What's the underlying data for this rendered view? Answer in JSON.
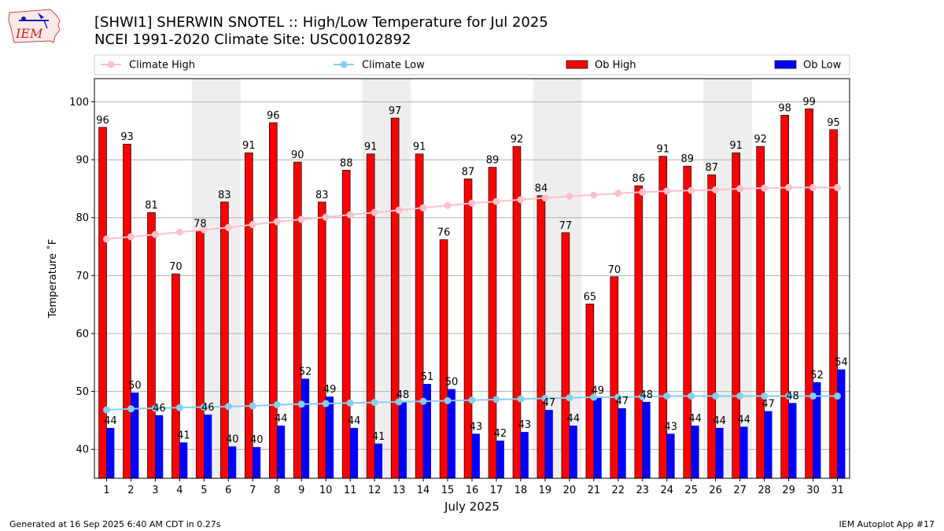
{
  "header": {
    "logo_text": "IEM",
    "title_line1": "[SHWI1] SHERWIN SNOTEL :: High/Low Temperature for Jul 2025",
    "title_line2": "NCEI 1991-2020 Climate Site: USC00102892"
  },
  "footer": {
    "generated": "Generated at 16 Sep 2025 6:40 AM CDT in 0.27s",
    "app": "IEM Autoplot App #17"
  },
  "colors": {
    "ob_high": "#ff0000",
    "ob_low": "#0000ff",
    "climate_high": "#ffc0cb",
    "climate_low": "#87ceeb",
    "weekend_shade": "#eeeeee",
    "grid": "#b0b0b0"
  },
  "chart_data": {
    "type": "bar",
    "xlabel": "July 2025",
    "ylabel": "Temperature ˚F",
    "ylim": [
      35,
      104
    ],
    "yticks": [
      40,
      50,
      60,
      70,
      80,
      90,
      100
    ],
    "grid": "horizontal",
    "legend_position": "top",
    "categories": [
      "1",
      "2",
      "3",
      "4",
      "5",
      "6",
      "7",
      "8",
      "9",
      "10",
      "11",
      "12",
      "13",
      "14",
      "15",
      "16",
      "17",
      "18",
      "19",
      "20",
      "21",
      "22",
      "23",
      "24",
      "25",
      "26",
      "27",
      "28",
      "29",
      "30",
      "31"
    ],
    "shaded_days": [
      [
        5,
        6
      ],
      [
        12,
        13
      ],
      [
        19,
        20
      ],
      [
        26,
        27
      ]
    ],
    "series": [
      {
        "name": "Ob High",
        "kind": "bar",
        "values": [
          95.6,
          92.7,
          80.9,
          70.3,
          77.7,
          82.7,
          91.2,
          96.4,
          89.6,
          82.7,
          88.2,
          91.0,
          97.2,
          91.0,
          76.2,
          86.7,
          88.7,
          92.3,
          83.8,
          77.4,
          65.1,
          69.8,
          85.5,
          90.6,
          88.9,
          87.4,
          91.2,
          92.3,
          97.7,
          98.8,
          95.2
        ],
        "labels": [
          96,
          93,
          81,
          70,
          78,
          83,
          91,
          96,
          90,
          83,
          88,
          91,
          97,
          91,
          76,
          87,
          89,
          92,
          84,
          77,
          65,
          70,
          86,
          91,
          89,
          87,
          91,
          92,
          98,
          99,
          95
        ]
      },
      {
        "name": "Ob Low",
        "kind": "bar",
        "values": [
          43.7,
          49.8,
          45.9,
          41.2,
          46.0,
          40.5,
          40.4,
          44.1,
          52.2,
          49.1,
          43.7,
          41.0,
          48.2,
          51.3,
          50.4,
          42.7,
          41.5,
          43.0,
          46.8,
          44.1,
          48.9,
          47.1,
          48.2,
          42.7,
          44.1,
          43.7,
          43.9,
          46.6,
          48.0,
          51.6,
          53.8
        ],
        "labels": [
          44,
          50,
          46,
          41,
          46,
          40,
          40,
          44,
          52,
          49,
          44,
          41,
          48,
          51,
          50,
          43,
          42,
          43,
          47,
          44,
          49,
          47,
          48,
          43,
          44,
          44,
          44,
          47,
          48,
          52,
          54
        ]
      },
      {
        "name": "Climate High",
        "kind": "line",
        "values": [
          76.3,
          76.7,
          77.1,
          77.5,
          77.9,
          78.3,
          78.8,
          79.3,
          79.7,
          80.1,
          80.5,
          80.9,
          81.3,
          81.7,
          82.1,
          82.5,
          82.8,
          83.1,
          83.4,
          83.7,
          83.9,
          84.2,
          84.4,
          84.6,
          84.7,
          84.8,
          85.0,
          85.1,
          85.2,
          85.2,
          85.2
        ]
      },
      {
        "name": "Climate Low",
        "kind": "line",
        "values": [
          46.8,
          47.0,
          47.1,
          47.2,
          47.3,
          47.4,
          47.5,
          47.7,
          47.8,
          47.9,
          48.0,
          48.1,
          48.2,
          48.3,
          48.4,
          48.5,
          48.6,
          48.7,
          48.8,
          48.9,
          49.0,
          49.0,
          49.1,
          49.2,
          49.2,
          49.2,
          49.2,
          49.2,
          49.2,
          49.2,
          49.2
        ]
      }
    ]
  }
}
